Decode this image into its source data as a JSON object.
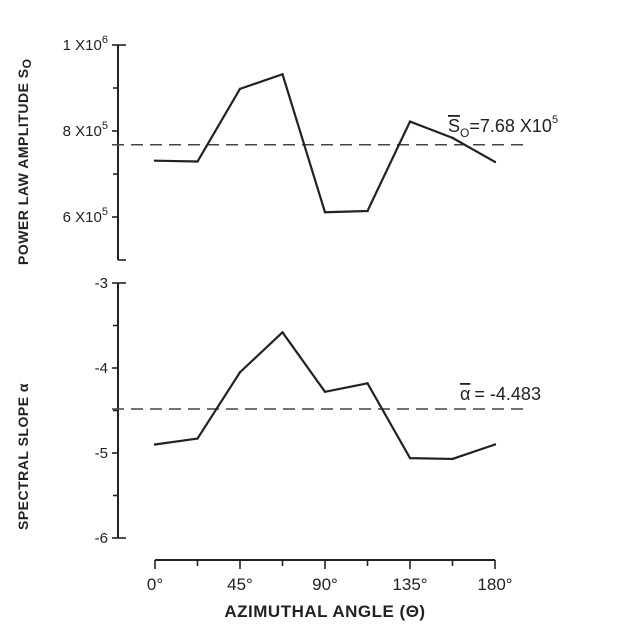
{
  "chart_data": [
    {
      "type": "line",
      "ylabel": "POWER LAW AMPLITUDE",
      "ylabel_symbol": "S",
      "ylabel_symbol_sub": "O",
      "ylim": [
        500000,
        1000000
      ],
      "y_ticks": [
        {
          "value": 600000,
          "mantissa": "6 X10",
          "exp": "5"
        },
        {
          "value": 800000,
          "mantissa": "8 X10",
          "exp": "5"
        },
        {
          "value": 1000000,
          "mantissa": "1 X10",
          "exp": "6"
        }
      ],
      "y_minor_ticks": [
        700000,
        900000
      ],
      "x": [
        0,
        22.5,
        45,
        67.5,
        90,
        112.5,
        135,
        157.5,
        180
      ],
      "values": [
        731000,
        729000,
        898000,
        932000,
        611000,
        614000,
        822000,
        784000,
        728000
      ],
      "mean": 768000,
      "mean_label": {
        "symbol": "S",
        "sub": "O",
        "text": "=7.68 X10",
        "exp": "5"
      }
    },
    {
      "type": "line",
      "ylabel": "SPECTRAL SLOPE",
      "ylabel_symbol": "α",
      "ylim": [
        -6,
        -3
      ],
      "y_ticks": [
        {
          "value": -3,
          "label": "-3"
        },
        {
          "value": -4,
          "label": "-4"
        },
        {
          "value": -5,
          "label": "-5"
        },
        {
          "value": -6,
          "label": "-6"
        }
      ],
      "y_minor_ticks": [
        -3.5,
        -4.5,
        -5.5
      ],
      "x": [
        0,
        22.5,
        45,
        67.5,
        90,
        112.5,
        135,
        157.5,
        180
      ],
      "values": [
        -4.9,
        -4.83,
        -4.05,
        -3.58,
        -4.28,
        -4.18,
        -5.06,
        -5.07,
        -4.9
      ],
      "mean": -4.483,
      "mean_label": {
        "symbol": "α",
        "text": "= -4.483"
      }
    }
  ],
  "x_axis": {
    "xlim": [
      0,
      180
    ],
    "ticks": [
      {
        "value": 0,
        "label": "0°"
      },
      {
        "value": 45,
        "label": "45°"
      },
      {
        "value": 90,
        "label": "90°"
      },
      {
        "value": 135,
        "label": "135°"
      },
      {
        "value": 180,
        "label": "180°"
      }
    ],
    "minor_ticks": [
      22.5,
      67.5,
      112.5,
      157.5
    ],
    "xlabel": "AZIMUTHAL ANGLE (Θ)"
  }
}
